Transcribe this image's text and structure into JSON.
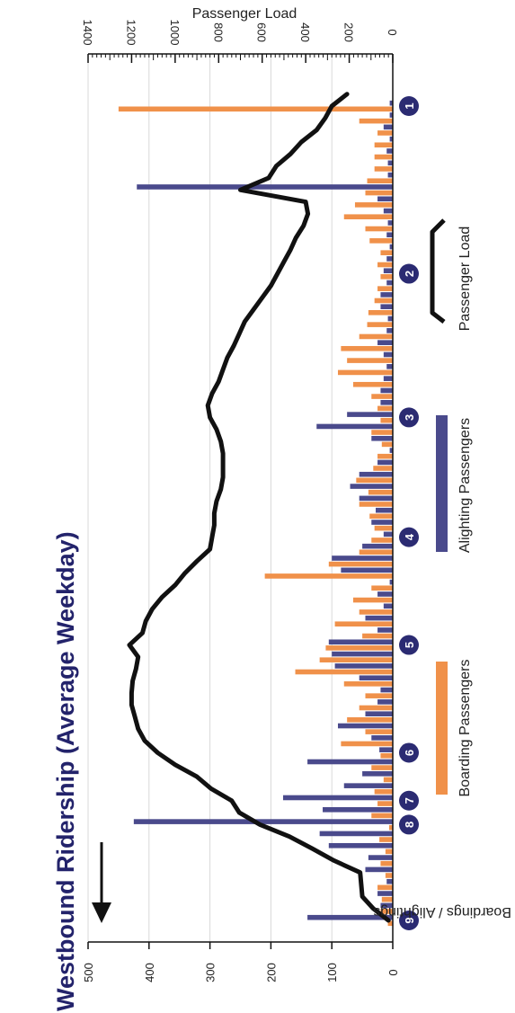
{
  "chart_data": {
    "type": "bar",
    "title": "Westbound Ridership (Average Weekday)",
    "left_axis_label": "Boardings / Alightings",
    "right_axis_label": "Passenger Load",
    "left_ticks": [
      0,
      100,
      200,
      300,
      400,
      500
    ],
    "right_ticks": [
      0,
      200,
      400,
      600,
      800,
      1000,
      1200,
      1400
    ],
    "ylim_boardings": [
      0,
      500
    ],
    "ylim_load": [
      0,
      1400
    ],
    "gridlines": true,
    "orientation": "rotated-90-clockwise",
    "colors": {
      "boarding": "#f0914a",
      "alighting": "#4a4a8c",
      "load": "#111111",
      "title": "#23236b",
      "stop_marker": "#2b2b72",
      "grid": "#d9d9d9"
    },
    "legend": [
      {
        "name": "Boarding Passengers",
        "kind": "boarding"
      },
      {
        "name": "Alighting Passengers",
        "kind": "alighting"
      },
      {
        "name": "Passenger Load",
        "kind": "load"
      }
    ],
    "stop_labels": [
      "9",
      "8",
      "7",
      "6",
      "5",
      "4",
      "3",
      "2",
      "1"
    ],
    "stop_positions": [
      0,
      8,
      10,
      14,
      23,
      32,
      42,
      54,
      68
    ],
    "num_segments": 69,
    "boardings": [
      8,
      20,
      18,
      25,
      12,
      20,
      12,
      22,
      6,
      35,
      25,
      30,
      15,
      35,
      20,
      85,
      45,
      75,
      55,
      45,
      80,
      160,
      120,
      110,
      50,
      95,
      55,
      65,
      35,
      210,
      105,
      55,
      35,
      30,
      38,
      55,
      40,
      60,
      32,
      25,
      18,
      35,
      20,
      25,
      35,
      65,
      90,
      75,
      85,
      55,
      42,
      40,
      30,
      25,
      20,
      25,
      20,
      38,
      45,
      80,
      62,
      45,
      42,
      30,
      30,
      30,
      25,
      55,
      450
    ],
    "alightings": [
      140,
      20,
      25,
      10,
      45,
      40,
      105,
      120,
      425,
      115,
      180,
      80,
      50,
      140,
      22,
      35,
      90,
      45,
      25,
      20,
      55,
      95,
      100,
      105,
      25,
      45,
      15,
      25,
      5,
      85,
      100,
      50,
      15,
      35,
      28,
      55,
      70,
      55,
      25,
      5,
      35,
      125,
      75,
      20,
      20,
      15,
      10,
      15,
      25,
      10,
      8,
      20,
      20,
      10,
      15,
      10,
      5,
      10,
      8,
      15,
      25,
      420,
      8,
      8,
      10,
      5,
      15,
      5,
      5
    ],
    "passenger_load": [
      20,
      90,
      140,
      145,
      150,
      270,
      370,
      475,
      610,
      705,
      740,
      835,
      900,
      1000,
      1080,
      1140,
      1170,
      1185,
      1200,
      1200,
      1195,
      1180,
      1170,
      1210,
      1150,
      1135,
      1105,
      1060,
      1000,
      955,
      900,
      840,
      830,
      820,
      820,
      810,
      790,
      780,
      780,
      780,
      790,
      810,
      840,
      850,
      830,
      800,
      780,
      760,
      730,
      705,
      680,
      640,
      600,
      560,
      530,
      500,
      470,
      445,
      410,
      390,
      400,
      700,
      570,
      535,
      470,
      420,
      350,
      310,
      280,
      210
    ]
  }
}
